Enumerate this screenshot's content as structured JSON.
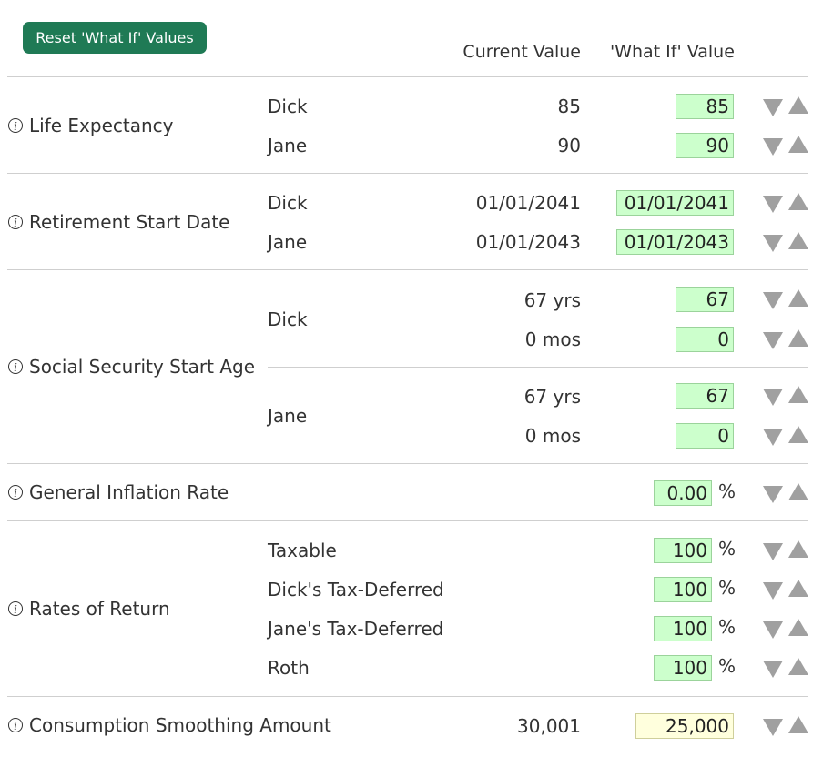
{
  "reset_label": "Reset 'What If' Values",
  "headers": {
    "current": "Current Value",
    "whatif": "'What If' Value"
  },
  "info_glyph": "i",
  "sections": {
    "life_expectancy": {
      "label": "Life Expectancy",
      "rows": [
        {
          "name": "Dick",
          "current": "85",
          "whatif": "85"
        },
        {
          "name": "Jane",
          "current": "90",
          "whatif": "90"
        }
      ]
    },
    "retirement_start": {
      "label": "Retirement Start Date",
      "rows": [
        {
          "name": "Dick",
          "current": "01/01/2041",
          "whatif": "01/01/2041"
        },
        {
          "name": "Jane",
          "current": "01/01/2043",
          "whatif": "01/01/2043"
        }
      ]
    },
    "social_security": {
      "label": "Social Security Start Age",
      "people": [
        {
          "name": "Dick",
          "years_current": "67 yrs",
          "years_whatif": "67",
          "months_current": "0 mos",
          "months_whatif": "0"
        },
        {
          "name": "Jane",
          "years_current": "67 yrs",
          "years_whatif": "67",
          "months_current": "0 mos",
          "months_whatif": "0"
        }
      ]
    },
    "inflation": {
      "label": "General Inflation Rate",
      "whatif": "0.00",
      "unit": "%"
    },
    "rates_of_return": {
      "label": "Rates of Return",
      "rows": [
        {
          "name": "Taxable",
          "whatif": "100",
          "unit": "%"
        },
        {
          "name": "Dick's Tax-Deferred",
          "whatif": "100",
          "unit": "%"
        },
        {
          "name": "Jane's Tax-Deferred",
          "whatif": "100",
          "unit": "%"
        },
        {
          "name": "Roth",
          "whatif": "100",
          "unit": "%"
        }
      ]
    },
    "consumption": {
      "label": "Consumption Smoothing Amount",
      "current": "30,001",
      "whatif": "25,000"
    }
  },
  "colors": {
    "button": "#1f7a55",
    "input_green": "#ccffcc",
    "input_yellow": "#ffffdd",
    "arrow": "#a0a0a0"
  }
}
